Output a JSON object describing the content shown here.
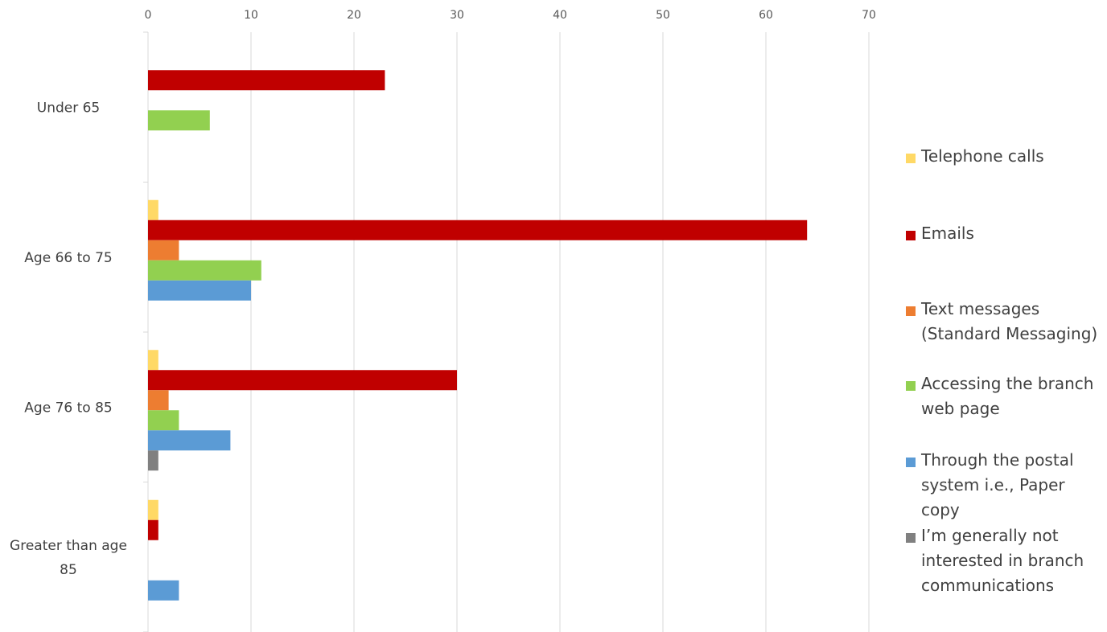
{
  "chart_data": {
    "type": "bar",
    "orientation": "horizontal",
    "title": "",
    "xlabel": "",
    "ylabel": "",
    "xlim": [
      0,
      70
    ],
    "x_ticks": [
      0,
      10,
      20,
      30,
      40,
      50,
      60,
      70
    ],
    "x_axis_position": "top",
    "grid": true,
    "legend_position": "right",
    "categories": [
      "Under 65",
      "Age 66 to 75",
      "Age 76 to 85",
      "Greater than age 85"
    ],
    "series": [
      {
        "name": "Telephone calls",
        "color": "#ffd966",
        "values": [
          0,
          1,
          1,
          1
        ]
      },
      {
        "name": "Emails",
        "color": "#c00000",
        "values": [
          23,
          64,
          30,
          1
        ]
      },
      {
        "name": "Text messages (Standard Messaging)",
        "color": "#ed7d31",
        "values": [
          0,
          3,
          2,
          0
        ]
      },
      {
        "name": "Accessing the branch web page",
        "color": "#92d050",
        "values": [
          6,
          11,
          3,
          0
        ]
      },
      {
        "name": "Through the postal system i.e., Paper copy",
        "color": "#5b9bd5",
        "values": [
          0,
          10,
          8,
          3
        ]
      },
      {
        "name": "I’m generally not interested in branch communications",
        "color": "#808080",
        "values": [
          0,
          0,
          1,
          0
        ]
      }
    ]
  },
  "legend": {
    "items": [
      {
        "label": "Telephone calls",
        "color": "#ffd966"
      },
      {
        "label": "Emails",
        "color": "#c00000"
      },
      {
        "label": "Text messages\n(Standard Messaging)",
        "color": "#ed7d31"
      },
      {
        "label": "Accessing the branch\nweb page",
        "color": "#92d050"
      },
      {
        "label": "Through the postal\nsystem i.e., Paper\ncopy",
        "color": "#5b9bd5"
      },
      {
        "label": "I’m generally not\ninterested in branch\ncommunications",
        "color": "#808080"
      }
    ]
  },
  "category_labels": [
    "Under 65",
    "Age 66 to 75",
    "Age 76 to 85",
    "Greater than age\n85"
  ]
}
